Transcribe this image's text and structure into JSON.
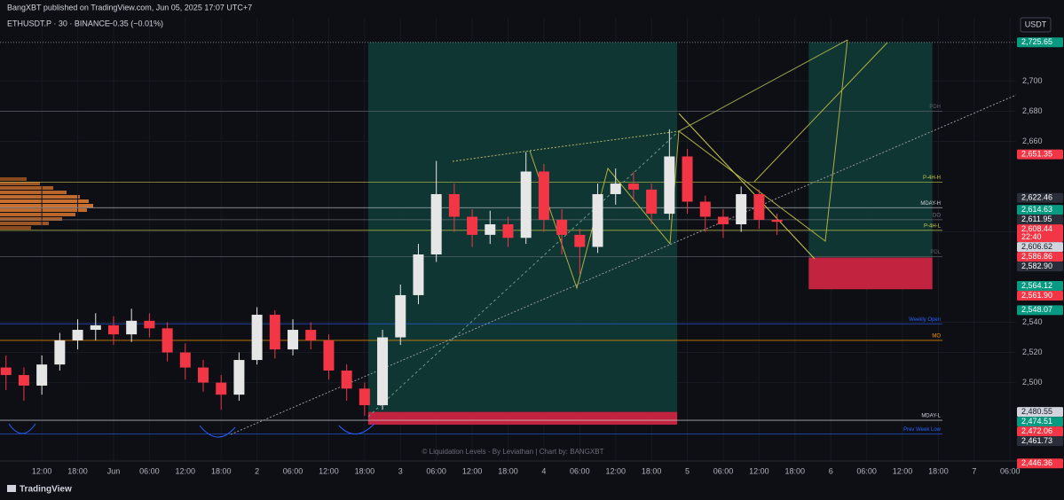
{
  "header": {
    "text": "BangXBT published on TradingView.com, Jun 05, 2025 17:07 UTC+7"
  },
  "footer": {
    "brand": "TradingView"
  },
  "chart_data": {
    "type": "candlestick",
    "title": "ETHUSDT.P · 30 · BINANCE",
    "change": "−0.35 (−0.01%)",
    "currency": "USDT",
    "watermark": "© Liquidation Levels - By Leviathan | Chart by: BANGXBT",
    "up_color": "#e6e6e6",
    "down_color": "#f23645",
    "x": [
      -18,
      -15,
      -12,
      -9,
      -6,
      -3,
      0,
      3,
      6,
      9,
      12,
      15,
      18,
      21,
      24,
      27,
      30,
      33,
      36,
      39,
      42,
      45,
      48,
      51,
      54,
      57,
      60,
      63,
      66,
      69,
      72,
      75,
      78,
      81,
      84,
      87,
      90,
      93,
      96,
      99,
      102,
      105,
      108,
      111
    ],
    "open": [
      2510,
      2505,
      2498,
      2512,
      2528,
      2535,
      2538,
      2532,
      2541,
      2536,
      2520,
      2510,
      2500,
      2492,
      2515,
      2545,
      2522,
      2535,
      2528,
      2508,
      2496,
      2485,
      2530,
      2558,
      2585,
      2625,
      2610,
      2598,
      2605,
      2596,
      2640,
      2608,
      2598,
      2590,
      2625,
      2632,
      2628,
      2612,
      2650,
      2620,
      2610,
      2605,
      2625,
      2608
    ],
    "high": [
      2518,
      2510,
      2518,
      2533,
      2542,
      2546,
      2544,
      2549,
      2546,
      2540,
      2526,
      2515,
      2505,
      2520,
      2550,
      2548,
      2542,
      2540,
      2532,
      2512,
      2500,
      2535,
      2565,
      2592,
      2647,
      2632,
      2615,
      2614,
      2610,
      2653,
      2645,
      2615,
      2602,
      2632,
      2642,
      2640,
      2632,
      2668,
      2655,
      2624,
      2615,
      2630,
      2628,
      2612
    ],
    "low": [
      2495,
      2488,
      2492,
      2508,
      2522,
      2528,
      2525,
      2527,
      2530,
      2514,
      2502,
      2494,
      2482,
      2488,
      2512,
      2516,
      2518,
      2522,
      2502,
      2488,
      2478,
      2482,
      2525,
      2552,
      2580,
      2600,
      2590,
      2592,
      2590,
      2592,
      2600,
      2585,
      2572,
      2586,
      2618,
      2620,
      2605,
      2608,
      2612,
      2600,
      2596,
      2600,
      2602,
      2598
    ],
    "close": [
      2505,
      2498,
      2512,
      2528,
      2535,
      2538,
      2532,
      2541,
      2536,
      2520,
      2510,
      2500,
      2492,
      2515,
      2545,
      2522,
      2535,
      2528,
      2508,
      2496,
      2485,
      2530,
      2558,
      2585,
      2625,
      2610,
      2598,
      2605,
      2596,
      2640,
      2608,
      2598,
      2590,
      2625,
      2632,
      2628,
      2612,
      2650,
      2620,
      2610,
      2605,
      2625,
      2608,
      2606.62
    ],
    "xlim": [
      -19,
      151
    ],
    "xticks": [
      {
        "value": -12,
        "label": "12:00"
      },
      {
        "value": -6,
        "label": "18:00"
      },
      {
        "value": 0,
        "label": "Jun"
      },
      {
        "value": 6,
        "label": "06:00"
      },
      {
        "value": 12,
        "label": "12:00"
      },
      {
        "value": 18,
        "label": "18:00"
      },
      {
        "value": 24,
        "label": "2"
      },
      {
        "value": 30,
        "label": "06:00"
      },
      {
        "value": 36,
        "label": "12:00"
      },
      {
        "value": 42,
        "label": "18:00"
      },
      {
        "value": 48,
        "label": "3"
      },
      {
        "value": 54,
        "label": "06:00"
      },
      {
        "value": 60,
        "label": "12:00"
      },
      {
        "value": 66,
        "label": "18:00"
      },
      {
        "value": 72,
        "label": "4"
      },
      {
        "value": 78,
        "label": "06:00"
      },
      {
        "value": 84,
        "label": "12:00"
      },
      {
        "value": 90,
        "label": "18:00"
      },
      {
        "value": 96,
        "label": "5"
      },
      {
        "value": 102,
        "label": "06:00"
      },
      {
        "value": 108,
        "label": "12:00"
      },
      {
        "value": 114,
        "label": "18:00"
      },
      {
        "value": 120,
        "label": "6"
      },
      {
        "value": 126,
        "label": "06:00"
      },
      {
        "value": 132,
        "label": "12:00"
      },
      {
        "value": 138,
        "label": "18:00"
      },
      {
        "value": 144,
        "label": "7"
      },
      {
        "value": 150,
        "label": "06:00"
      }
    ],
    "ylim": [
      2448,
      2742
    ],
    "yticks": [
      {
        "value": 2500,
        "label": "2,500"
      },
      {
        "value": 2520,
        "label": "2,520"
      },
      {
        "value": 2540,
        "label": "2,540"
      },
      {
        "value": 2600,
        "label": "2,600"
      },
      {
        "value": 2660,
        "label": "2,660"
      },
      {
        "value": 2680,
        "label": "2,680"
      },
      {
        "value": 2700,
        "label": "2,700"
      }
    ],
    "grid": true,
    "levels": [
      {
        "name": "PDH",
        "value": 2680,
        "color": "#5d606b"
      },
      {
        "name": "P-4H-H",
        "value": 2633,
        "color": "#c9c94a"
      },
      {
        "name": "MDAY-H",
        "value": 2616,
        "color": "#d1d4dc"
      },
      {
        "name": "DO",
        "value": 2608,
        "color": "#787b86"
      },
      {
        "name": "P-4H-L",
        "value": 2601,
        "color": "#c9c94a"
      },
      {
        "name": "PDL",
        "value": 2583.5,
        "color": "#5d606b"
      },
      {
        "name": "Weekly Open",
        "value": 2539,
        "color": "#2962ff"
      },
      {
        "name": "MO",
        "value": 2528,
        "color": "#ff9800"
      },
      {
        "name": "MDAY-L",
        "value": 2475,
        "color": "#d1d4dc"
      },
      {
        "name": "Prev Week Low",
        "value": 2466,
        "color": "#2962ff"
      }
    ],
    "positions": [
      {
        "x": [
          42.6,
          94.3
        ],
        "target": 2725.65,
        "entry": 2480.55,
        "stop": 2472.06
      },
      {
        "x": [
          116.3,
          137
        ],
        "target": 2725.65,
        "entry": 2582.9,
        "stop": 2561.9
      }
    ],
    "price_labels": [
      {
        "value": 2725.65,
        "label": "2,725.65",
        "color": "#089981"
      },
      {
        "value": 2651.35,
        "label": "2,651.35",
        "color": "#f23645"
      },
      {
        "value": 2622.46,
        "label": "2,622.46",
        "color": "#2a2e39"
      },
      {
        "value": 2614.63,
        "label": "2,614.63",
        "color": "#089981"
      },
      {
        "value": 2611.95,
        "label": "2,611.95",
        "color": "#2a2e39"
      },
      {
        "value": 2608.44,
        "label": "2,608.44",
        "color": "#f23645",
        "countdown": "22:40"
      },
      {
        "value": 2606.62,
        "label": "2,606.62",
        "color": "#d1d4dc"
      },
      {
        "value": 2586.86,
        "label": "2,586.86",
        "color": "#f23645"
      },
      {
        "value": 2582.9,
        "label": "2,582.90",
        "color": "#2a2e39"
      },
      {
        "value": 2564.12,
        "label": "2,564.12",
        "color": "#089981"
      },
      {
        "value": 2561.9,
        "label": "2,561.90",
        "color": "#f23645"
      },
      {
        "value": 2548.07,
        "label": "2,548.07",
        "color": "#089981"
      },
      {
        "value": 2480.55,
        "label": "2,480.55",
        "color": "#d1d4dc"
      },
      {
        "value": 2474.51,
        "label": "2,474.51",
        "color": "#089981"
      },
      {
        "value": 2472.06,
        "label": "2,472.06",
        "color": "#f23645"
      },
      {
        "value": 2461.73,
        "label": "2,461.73",
        "color": "#2a2e39"
      },
      {
        "value": 2446.36,
        "label": "2,446.36",
        "color": "#f23645"
      }
    ]
  }
}
